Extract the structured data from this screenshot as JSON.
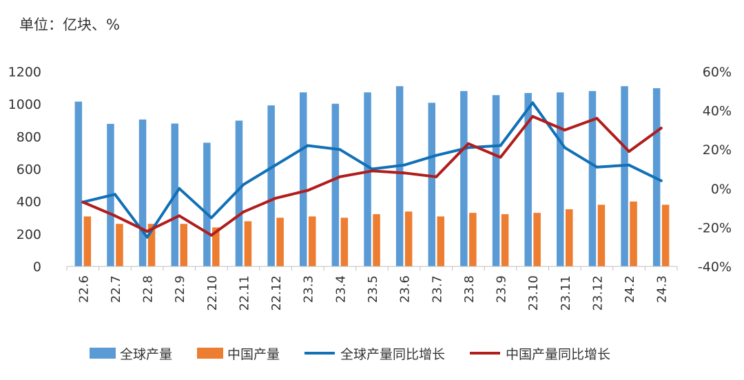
{
  "chart_data": {
    "type": "bar+line",
    "unit_label": "单位：亿块、%",
    "categories": [
      "22.6",
      "22.7",
      "22.8",
      "22.9",
      "22.10",
      "22.11",
      "22.12",
      "23.3",
      "23.4",
      "23.5",
      "23.6",
      "23.7",
      "23.8",
      "23.9",
      "23.10",
      "23.11",
      "23.12",
      "24.2",
      "24.3"
    ],
    "bar_series": [
      {
        "name": "全球产量",
        "color": "#5b9bd5",
        "values": [
          1015,
          878,
          905,
          880,
          762,
          898,
          992,
          1072,
          1002,
          1072,
          1110,
          1008,
          1080,
          1055,
          1068,
          1072,
          1080,
          1110,
          1098
        ]
      },
      {
        "name": "中国产量",
        "color": "#ed7d31",
        "values": [
          308,
          262,
          262,
          262,
          240,
          278,
          300,
          308,
          300,
          322,
          338,
          308,
          330,
          322,
          330,
          352,
          380,
          400,
          380
        ]
      }
    ],
    "line_series": [
      {
        "name": "全球产量同比增长",
        "color": "#1170b6",
        "values": [
          -7,
          -3,
          -25,
          0,
          -15,
          2,
          12,
          22,
          20,
          10,
          12,
          17,
          21,
          22,
          44,
          21,
          11,
          12,
          4
        ]
      },
      {
        "name": "中国产量同比增长",
        "color": "#b11d1d",
        "values": [
          -7,
          -14,
          -22,
          -14,
          -24,
          -12,
          -5,
          -1,
          6,
          9,
          8,
          6,
          23,
          16,
          37,
          30,
          36,
          19,
          31
        ]
      }
    ],
    "y_left": {
      "min": 0,
      "max": 1200,
      "ticks": [
        "0",
        "200",
        "400",
        "600",
        "800",
        "1000",
        "1200"
      ]
    },
    "y_right": {
      "min": -40,
      "max": 60,
      "ticks": [
        "-40%",
        "-20%",
        "0%",
        "20%",
        "40%",
        "60%"
      ]
    },
    "legend_position": "bottom",
    "grid": false
  }
}
